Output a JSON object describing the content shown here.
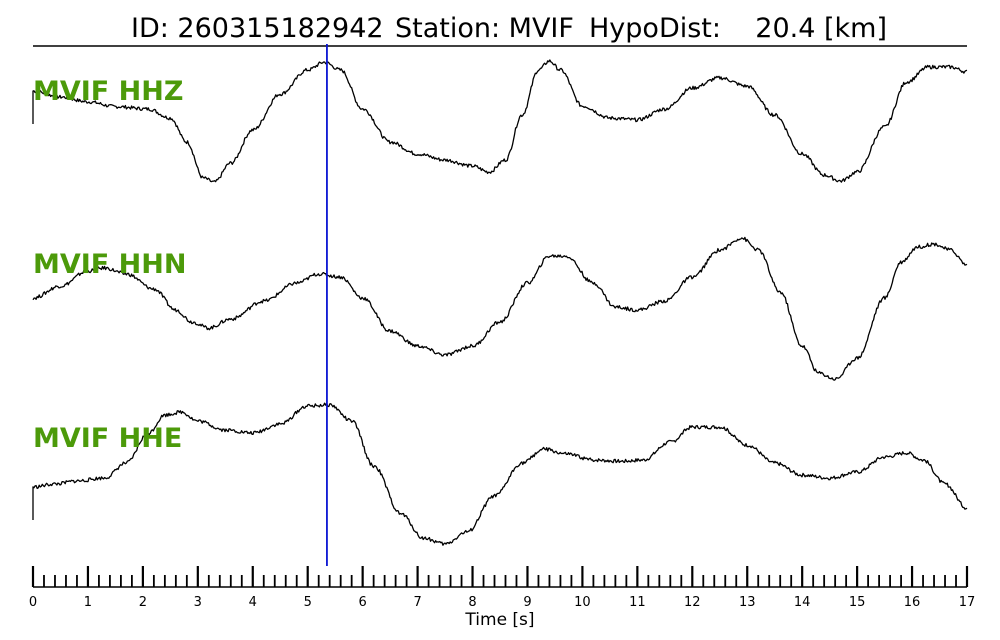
{
  "title": {
    "id_text": "ID: 260315182942",
    "station_text": "Station: MVIF",
    "dist_text": "HypoDist:    20.4 [km]"
  },
  "chart_data": {
    "type": "line",
    "xlabel": "Time [s]",
    "xlim": [
      0,
      17
    ],
    "x_ticks": [
      "0",
      "1",
      "2",
      "3",
      "4",
      "5",
      "6",
      "7",
      "8",
      "9",
      "10",
      "11",
      "12",
      "13",
      "14",
      "15",
      "16",
      "17"
    ],
    "minor_tick_step": 0.2,
    "pick_time": 5.35,
    "pick_color": "#0a14d2",
    "label_color": "#4c9a0a",
    "series": [
      {
        "name": "MVIF HHZ",
        "start_spike": 0.55,
        "points": [
          [
            0,
            0.9
          ],
          [
            0.5,
            0.8
          ],
          [
            1.0,
            0.72
          ],
          [
            1.5,
            0.64
          ],
          [
            2.1,
            0.6
          ],
          [
            2.5,
            0.45
          ],
          [
            2.8,
            0.05
          ],
          [
            3.1,
            -0.55
          ],
          [
            3.3,
            -0.62
          ],
          [
            3.6,
            -0.3
          ],
          [
            4.0,
            0.25
          ],
          [
            4.5,
            0.85
          ],
          [
            5.0,
            1.25
          ],
          [
            5.3,
            1.38
          ],
          [
            5.6,
            1.25
          ],
          [
            6.0,
            0.6
          ],
          [
            6.5,
            0.05
          ],
          [
            7.0,
            -0.15
          ],
          [
            7.5,
            -0.25
          ],
          [
            8.0,
            -0.35
          ],
          [
            8.3,
            -0.45
          ],
          [
            8.6,
            -0.25
          ],
          [
            8.9,
            0.5
          ],
          [
            9.2,
            1.25
          ],
          [
            9.4,
            1.4
          ],
          [
            9.6,
            1.25
          ],
          [
            10.0,
            0.65
          ],
          [
            10.5,
            0.45
          ],
          [
            11.0,
            0.42
          ],
          [
            11.5,
            0.6
          ],
          [
            12.0,
            0.95
          ],
          [
            12.5,
            1.12
          ],
          [
            13.0,
            0.98
          ],
          [
            13.5,
            0.5
          ],
          [
            14.0,
            -0.15
          ],
          [
            14.4,
            -0.5
          ],
          [
            14.7,
            -0.6
          ],
          [
            15.0,
            -0.45
          ],
          [
            15.5,
            0.3
          ],
          [
            15.9,
            1.05
          ],
          [
            16.3,
            1.3
          ],
          [
            16.7,
            1.3
          ],
          [
            17.0,
            1.22
          ]
        ]
      },
      {
        "name": "MVIF HHN",
        "start_spike": 0,
        "points": [
          [
            0,
            0.2
          ],
          [
            0.5,
            0.4
          ],
          [
            1.0,
            0.65
          ],
          [
            1.3,
            0.7
          ],
          [
            1.7,
            0.6
          ],
          [
            2.2,
            0.35
          ],
          [
            2.6,
            0.0
          ],
          [
            2.9,
            -0.2
          ],
          [
            3.2,
            -0.3
          ],
          [
            3.6,
            -0.15
          ],
          [
            4.2,
            0.15
          ],
          [
            4.8,
            0.45
          ],
          [
            5.2,
            0.6
          ],
          [
            5.6,
            0.55
          ],
          [
            6.0,
            0.2
          ],
          [
            6.5,
            -0.35
          ],
          [
            7.0,
            -0.6
          ],
          [
            7.5,
            -0.75
          ],
          [
            8.0,
            -0.6
          ],
          [
            8.5,
            -0.2
          ],
          [
            9.0,
            0.45
          ],
          [
            9.4,
            0.9
          ],
          [
            9.7,
            0.9
          ],
          [
            10.2,
            0.45
          ],
          [
            10.6,
            0.05
          ],
          [
            11.0,
            0.0
          ],
          [
            11.5,
            0.15
          ],
          [
            12.0,
            0.55
          ],
          [
            12.5,
            1.0
          ],
          [
            12.9,
            1.2
          ],
          [
            13.2,
            1.0
          ],
          [
            13.6,
            0.3
          ],
          [
            14.0,
            -0.6
          ],
          [
            14.3,
            -1.05
          ],
          [
            14.6,
            -1.15
          ],
          [
            15.0,
            -0.8
          ],
          [
            15.5,
            0.2
          ],
          [
            15.8,
            0.8
          ],
          [
            16.1,
            1.05
          ],
          [
            16.4,
            1.1
          ],
          [
            16.7,
            1.0
          ],
          [
            17.0,
            0.75
          ]
        ]
      },
      {
        "name": "MVIF HHE",
        "start_spike": 0.55,
        "points": [
          [
            0,
            0.05
          ],
          [
            0.4,
            0.1
          ],
          [
            0.8,
            0.15
          ],
          [
            1.3,
            0.2
          ],
          [
            1.7,
            0.45
          ],
          [
            2.1,
            0.95
          ],
          [
            2.4,
            1.25
          ],
          [
            2.7,
            1.3
          ],
          [
            3.0,
            1.15
          ],
          [
            3.5,
            1.0
          ],
          [
            4.0,
            0.95
          ],
          [
            4.5,
            1.1
          ],
          [
            5.0,
            1.4
          ],
          [
            5.4,
            1.42
          ],
          [
            5.8,
            1.15
          ],
          [
            6.2,
            0.4
          ],
          [
            6.7,
            -0.4
          ],
          [
            7.1,
            -0.8
          ],
          [
            7.5,
            -0.9
          ],
          [
            7.9,
            -0.7
          ],
          [
            8.4,
            -0.1
          ],
          [
            8.9,
            0.45
          ],
          [
            9.3,
            0.68
          ],
          [
            9.7,
            0.6
          ],
          [
            10.2,
            0.5
          ],
          [
            10.7,
            0.48
          ],
          [
            11.1,
            0.5
          ],
          [
            11.6,
            0.8
          ],
          [
            12.0,
            1.05
          ],
          [
            12.5,
            1.05
          ],
          [
            13.0,
            0.75
          ],
          [
            13.5,
            0.45
          ],
          [
            14.0,
            0.25
          ],
          [
            14.5,
            0.2
          ],
          [
            15.0,
            0.3
          ],
          [
            15.5,
            0.55
          ],
          [
            15.9,
            0.62
          ],
          [
            16.2,
            0.5
          ],
          [
            16.6,
            0.1
          ],
          [
            17.0,
            -0.3
          ]
        ]
      }
    ]
  }
}
